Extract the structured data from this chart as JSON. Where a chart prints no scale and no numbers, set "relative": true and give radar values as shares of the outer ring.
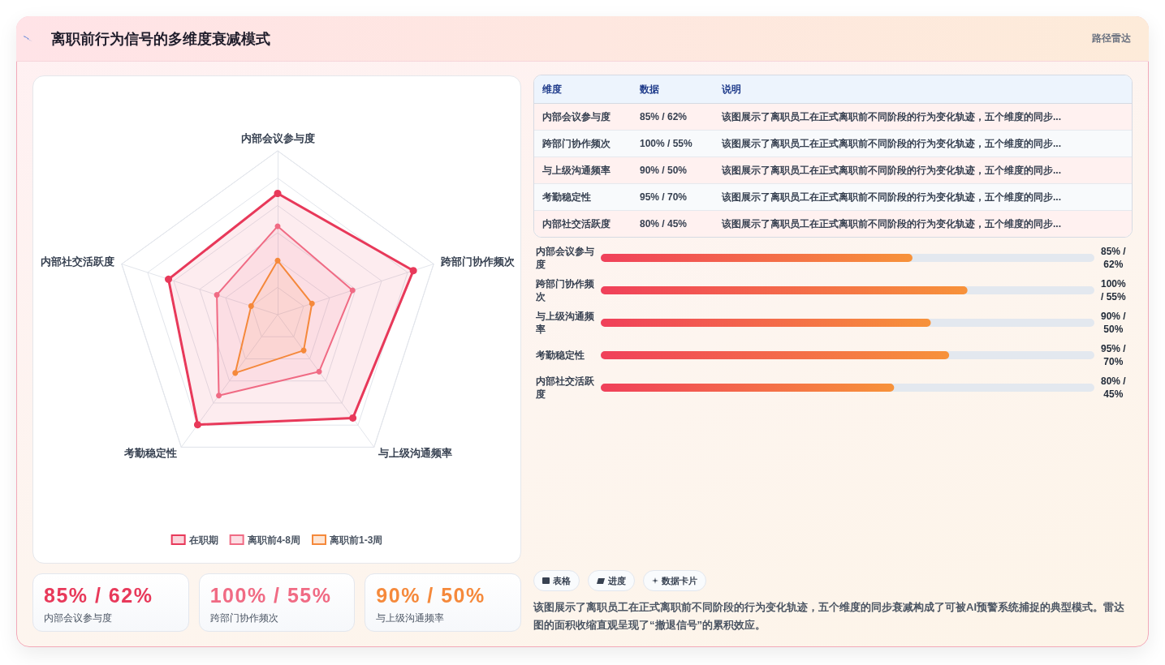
{
  "chart_data": [
    {
      "type": "other",
      "title": "离职前行为信号的多维度衰减模式",
      "subtitle": "路径雷达"
    },
    {
      "type": "radar",
      "categories": [
        "内部会议参与度",
        "跨部门协作频次",
        "与上级沟通频率",
        "考勤稳定性",
        "内部社交活跃度"
      ],
      "relative": true,
      "legend": "bottom",
      "marker": "circle",
      "series": [
        {
          "name": "在职期",
          "color": "#e8395a",
          "values": [
            0.74,
            0.87,
            0.78,
            0.83,
            0.7
          ]
        },
        {
          "name": "离职前4-8周",
          "color": "#f06b84",
          "values": [
            0.54,
            0.48,
            0.43,
            0.61,
            0.39
          ]
        },
        {
          "name": "离职前1-3周",
          "color": "#f5893b",
          "values": [
            0.33,
            0.22,
            0.27,
            0.44,
            0.17
          ]
        }
      ]
    },
    {
      "type": "other",
      "categories": [
        "维度",
        "数据",
        "说明"
      ],
      "cell_labels": [
        [
          "内部会议参与度",
          "85% / 62%",
          "该图展示了离职员工在正式离职前不同阶段的行为变化轨迹，五个维度的同步..."
        ],
        [
          "跨部门协作频次",
          "100% / 55%",
          "该图展示了离职员工在正式离职前不同阶段的行为变化轨迹，五个维度的同步..."
        ],
        [
          "与上级沟通频率",
          "90% / 50%",
          "该图展示了离职员工在正式离职前不同阶段的行为变化轨迹，五个维度的同步..."
        ],
        [
          "考勤稳定性",
          "95% / 70%",
          "该图展示了离职员工在正式离职前不同阶段的行为变化轨迹，五个维度的同步..."
        ],
        [
          "内部社交活跃度",
          "80% / 45%",
          "该图展示了离职员工在正式离职前不同阶段的行为变化轨迹，五个维度的同步..."
        ]
      ]
    },
    {
      "type": "bar",
      "orientation": "horizontal",
      "tick_labels": "y",
      "categories": [
        "内部会议参与度",
        "跨部门协作频次",
        "与上级沟通频率",
        "考勤稳定性",
        "内部社交活跃度"
      ],
      "values": [
        85,
        100,
        90,
        95,
        80
      ],
      "value_labels": [
        "85% / 62%",
        "100% / 55%",
        "90% / 50%",
        "95% / 70%",
        "80% / 45%"
      ],
      "color": "#f0405a"
    },
    {
      "type": "other",
      "categories": [
        "85% / 62%",
        "100% / 55%",
        "90% / 50%"
      ],
      "annotations": [
        "内部会议参与度",
        "跨部门协作频次",
        "与上级沟通频率"
      ]
    },
    {
      "type": "other",
      "categories": [
        "表格",
        "进度",
        "数据卡片"
      ],
      "annotations": [
        "该图展示了离职员工在正式离职前不同阶段的行为变化轨迹，五个维度的同步衰减构成了可被AI预警系统捕捉的典型模式。雷达图的面积收缩直观呈现了“撤退信号”的累积效应。"
      ]
    }
  ]
}
